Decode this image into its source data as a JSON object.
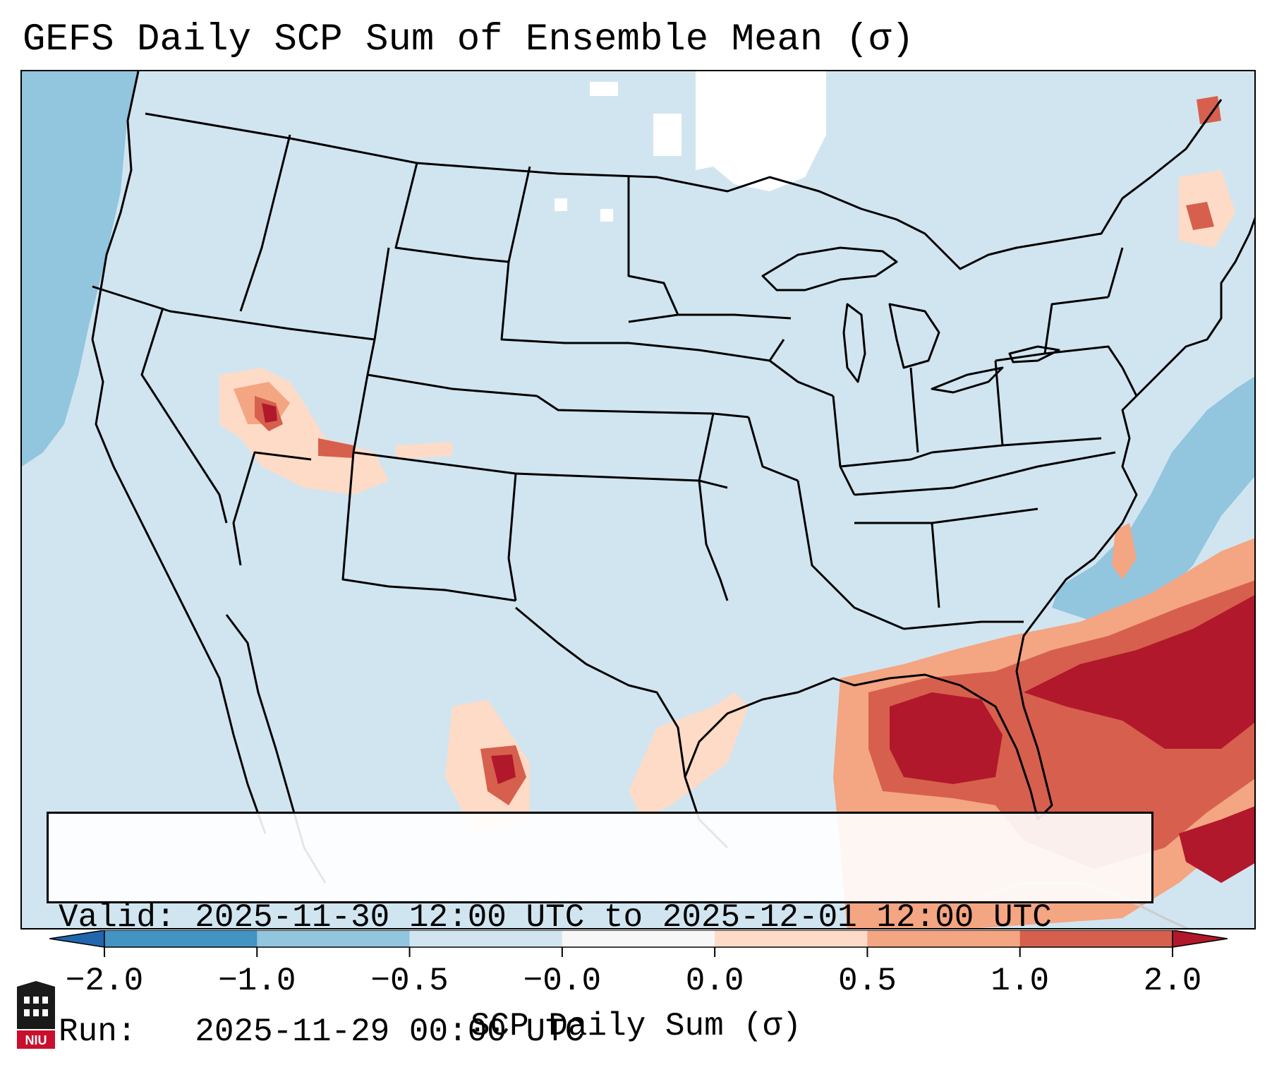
{
  "title": "GEFS Daily SCP Sum of Ensemble Mean (σ)",
  "info": {
    "valid": "Valid: 2025-11-30 12:00 UTC to 2025-12-01 12:00 UTC",
    "run": "Run:   2025-11-29 00:00 UTC"
  },
  "colorbar": {
    "label": "SCP Daily Sum (σ)",
    "ticks": [
      "−2.0",
      "−1.0",
      "−0.5",
      "−0.0",
      "0.0",
      "0.5",
      "1.0",
      "2.0"
    ],
    "colors": [
      "#4393c3",
      "#92c5de",
      "#d1e5f0",
      "#f7f7f7",
      "#fddbc7",
      "#f4a582",
      "#d6604d"
    ],
    "under_color": "#2166ac",
    "over_color": "#b2182b"
  },
  "map": {
    "background_color": "#d1e5f0",
    "land_color": "#d1e5f0",
    "white_color": "#ffffff"
  },
  "logo": {
    "text": "NIU",
    "icon": "niu-logo-icon"
  }
}
